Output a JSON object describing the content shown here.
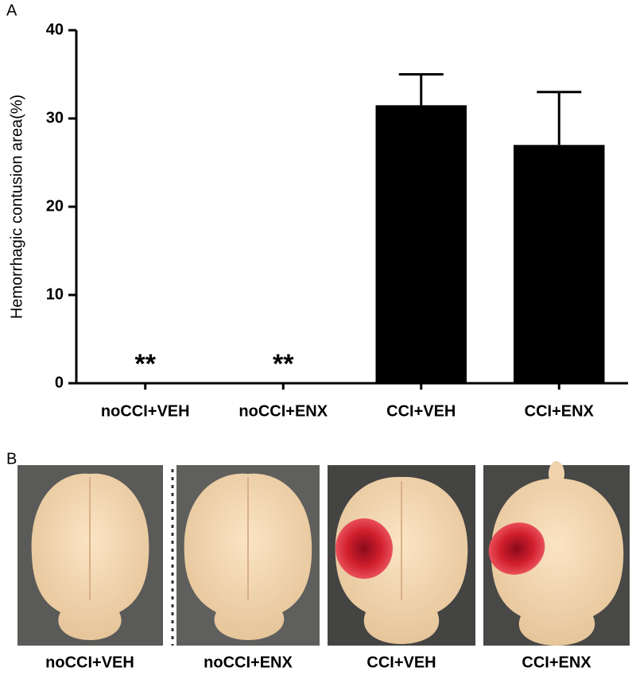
{
  "chart_data": {
    "type": "bar",
    "panel_label": "A",
    "y_label": "Hemorrhagic contusion area(%)",
    "categories": [
      "noCCI+VEH",
      "noCCI+ENX",
      "CCI+VEH",
      "CCI+ENX"
    ],
    "values": [
      0,
      0,
      31.5,
      27
    ],
    "errors": [
      null,
      null,
      3.5,
      6
    ],
    "annotations": [
      "**",
      "**",
      null,
      null
    ],
    "color": "#000000",
    "ylim": [
      0,
      40
    ],
    "yticks": [
      0,
      10,
      20,
      30,
      40
    ]
  },
  "panel_b": {
    "label": "B",
    "captions": [
      "noCCI+VEH",
      "noCCI+ENX",
      "CCI+VEH",
      "CCI+ENX"
    ]
  }
}
